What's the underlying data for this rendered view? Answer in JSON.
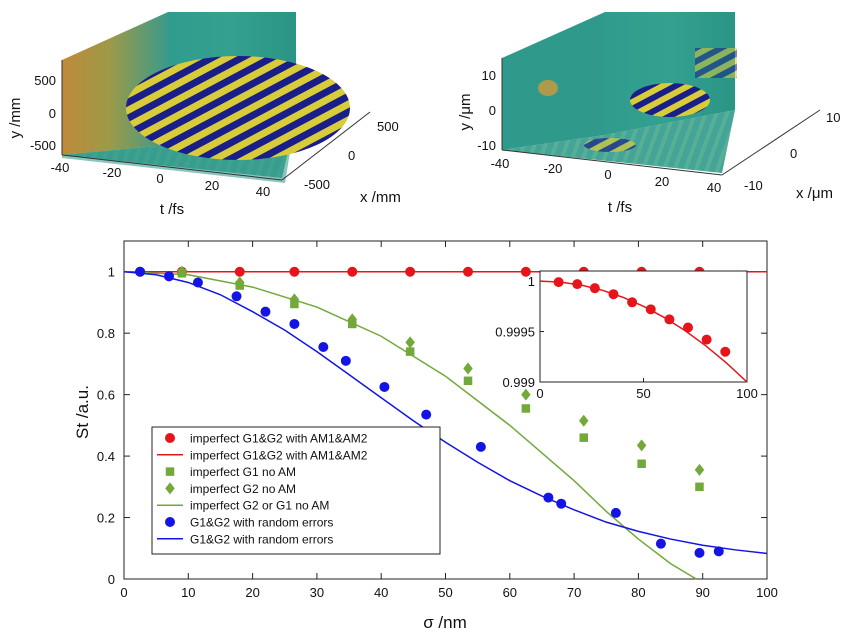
{
  "panel_a": {
    "ylabel": "y /mm",
    "tlabel": "t /fs",
    "xlabel": "x /mm",
    "y_ticks": [
      "500",
      "0",
      "-500"
    ],
    "t_ticks": [
      "-40",
      "-20",
      "0",
      "20",
      "40"
    ],
    "x_ticks": [
      "500",
      "0",
      "-500"
    ]
  },
  "panel_b": {
    "ylabel": "y /μm",
    "tlabel": "t /fs",
    "xlabel": "x /μm",
    "y_ticks": [
      "10",
      "0",
      "-10"
    ],
    "t_ticks": [
      "-40",
      "-20",
      "0",
      "20",
      "40"
    ],
    "x_ticks": [
      "10",
      "0",
      "-10"
    ]
  },
  "colors": {
    "red": "#e8141c",
    "green": "#73a83a",
    "blue": "#1414e6",
    "teal": "#2a9a8c",
    "yellow": "#d8cc38",
    "navy": "#1a1e8a"
  },
  "chart_data": {
    "type": "scatter",
    "xlabel": "σ /nm",
    "ylabel": "St /a.u.",
    "xlim": [
      0,
      100
    ],
    "ylim": [
      0,
      1.1
    ],
    "x_ticks": [
      0,
      10,
      20,
      30,
      40,
      50,
      60,
      70,
      80,
      90,
      100
    ],
    "y_ticks": [
      0,
      0.2,
      0.4,
      0.6,
      0.8,
      1
    ],
    "legend_position": "bottom-left",
    "series": [
      {
        "name": "imperfect G1&G2 with AM1&AM2",
        "kind": "marker-circle",
        "color": "#e8141c",
        "x": [
          2.5,
          9,
          18,
          26.5,
          35.5,
          44.5,
          53.5,
          62.5,
          71.5,
          80.5,
          89.5
        ],
        "y": [
          1,
          1,
          1,
          1,
          1,
          1,
          1,
          1,
          1,
          1,
          1
        ]
      },
      {
        "name": "imperfect G1&G2 with AM1&AM2",
        "kind": "line",
        "color": "#e8141c",
        "x": [
          0,
          100
        ],
        "y": [
          1,
          1
        ]
      },
      {
        "name": "imperfect G1 no AM",
        "kind": "marker-square",
        "color": "#73a83a",
        "x": [
          9,
          18,
          26.5,
          35.5,
          44.5,
          53.5,
          62.5,
          71.5,
          80.5,
          89.5
        ],
        "y": [
          0.995,
          0.955,
          0.895,
          0.83,
          0.74,
          0.645,
          0.555,
          0.46,
          0.375,
          0.3
        ]
      },
      {
        "name": "imperfect G2 no AM",
        "kind": "marker-diamond",
        "color": "#73a83a",
        "x": [
          9,
          18,
          26.5,
          35.5,
          44.5,
          53.5,
          62.5,
          71.5,
          80.5,
          89.5
        ],
        "y": [
          1.0,
          0.965,
          0.91,
          0.845,
          0.77,
          0.685,
          0.6,
          0.515,
          0.435,
          0.355
        ]
      },
      {
        "name": "imperfect G2 or G1 no AM",
        "kind": "line",
        "color": "#73a83a",
        "x": [
          0,
          10,
          20,
          30,
          40,
          50,
          60,
          70,
          75,
          80,
          85,
          89
        ],
        "y": [
          1,
          0.99,
          0.95,
          0.885,
          0.79,
          0.66,
          0.5,
          0.32,
          0.22,
          0.13,
          0.05,
          0
        ]
      },
      {
        "name": "G1&G2 with random errors",
        "kind": "marker-circle",
        "color": "#1414e6",
        "x": [
          2.5,
          7,
          11.5,
          17.5,
          22,
          26.5,
          31,
          34.5,
          40.5,
          47,
          55.5,
          66,
          68,
          76.5,
          83.5,
          89.5,
          92.5
        ],
        "y": [
          1.0,
          0.985,
          0.965,
          0.92,
          0.87,
          0.83,
          0.755,
          0.71,
          0.625,
          0.535,
          0.43,
          0.265,
          0.245,
          0.215,
          0.115,
          0.085,
          0.09
        ]
      },
      {
        "name": "G1&G2 with random errors",
        "kind": "line",
        "color": "#1414e6",
        "x": [
          0,
          5,
          10,
          15,
          20,
          25,
          30,
          35,
          40,
          45,
          50,
          55,
          60,
          65,
          70,
          75,
          80,
          85,
          90,
          95,
          100
        ],
        "y": [
          1,
          0.99,
          0.965,
          0.925,
          0.87,
          0.81,
          0.74,
          0.665,
          0.59,
          0.515,
          0.445,
          0.38,
          0.32,
          0.27,
          0.225,
          0.185,
          0.155,
          0.13,
          0.11,
          0.095,
          0.083
        ]
      }
    ],
    "inset": {
      "type": "scatter",
      "xlim": [
        0,
        100
      ],
      "ylim": [
        0.999,
        1.0001
      ],
      "x_ticks": [
        0,
        50,
        100
      ],
      "y_ticks": [
        0.999,
        0.9995,
        1
      ],
      "y_tick_labels": [
        "0.999",
        "0.9995",
        "1"
      ],
      "markers": {
        "color": "#e8141c",
        "x": [
          9,
          18,
          26.5,
          35.5,
          44.5,
          53.5,
          62.5,
          71.5,
          80.5,
          89.5
        ],
        "y": [
          0.99999,
          0.99997,
          0.99993,
          0.99987,
          0.99979,
          0.99972,
          0.99962,
          0.99954,
          0.99942,
          0.9993
        ]
      },
      "line": {
        "color": "#e8141c",
        "x": [
          0,
          10,
          20,
          30,
          40,
          50,
          60,
          70,
          80,
          90,
          100
        ],
        "y": [
          1.0,
          0.99999,
          0.99996,
          0.99991,
          0.99984,
          0.99975,
          0.99964,
          0.99951,
          0.99936,
          0.99919,
          0.999
        ]
      }
    }
  }
}
